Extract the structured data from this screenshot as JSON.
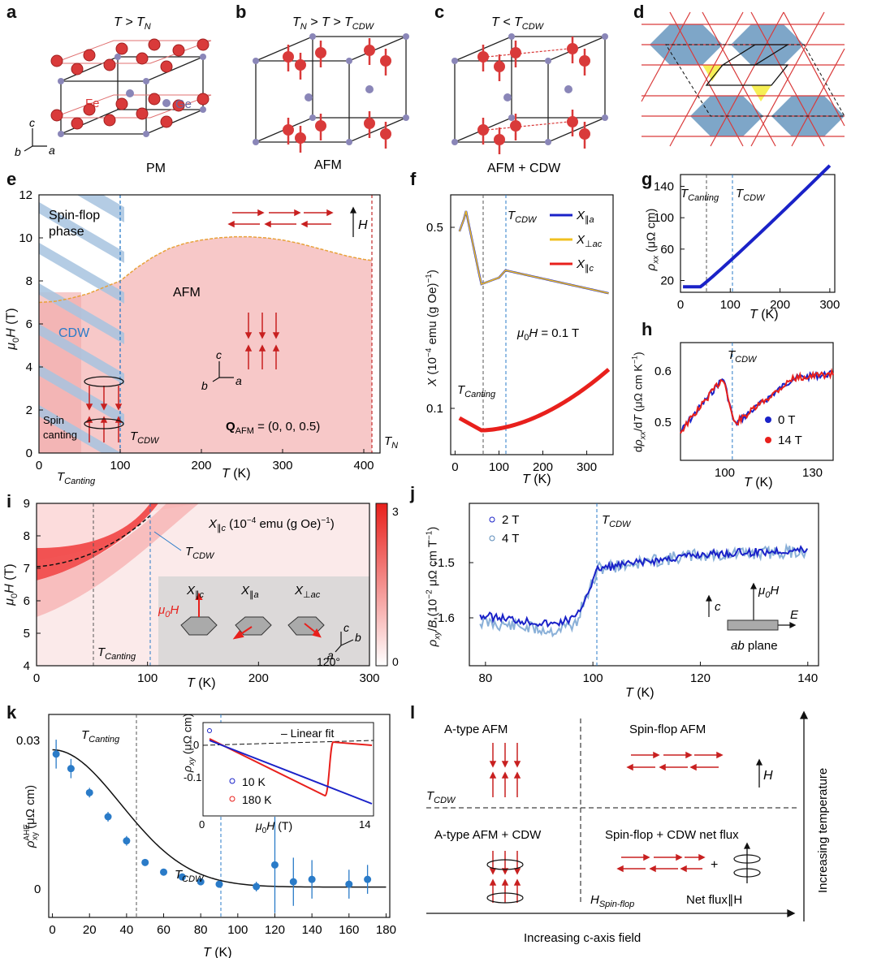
{
  "letters": [
    "a",
    "b",
    "c",
    "d",
    "e",
    "f",
    "g",
    "h",
    "i",
    "j",
    "k",
    "l"
  ],
  "a": {
    "title": "T > T_N",
    "fe": "Fe",
    "ge": "Ge",
    "state": "PM",
    "axes": [
      "c",
      "b",
      "a"
    ]
  },
  "b": {
    "title": "T_N > T > T_CDW",
    "state": "AFM"
  },
  "c": {
    "title": "T < T_CDW",
    "state": "AFM + CDW"
  },
  "e": {
    "xlabel": "T (K)",
    "ylabel": "μ0H (T)",
    "xticks": [
      0,
      100,
      200,
      300,
      400
    ],
    "yticks": [
      0,
      2,
      4,
      6,
      8,
      10,
      12
    ],
    "xlim": [
      0,
      420
    ],
    "ylim": [
      0,
      12
    ],
    "phase_boundary": {
      "x": [
        0,
        20,
        40,
        60,
        80,
        100,
        120,
        140,
        160,
        180,
        200,
        220,
        240,
        260,
        280,
        300,
        320,
        340,
        360,
        380,
        400,
        410
      ],
      "y": [
        7,
        7.05,
        7.2,
        7.4,
        7.7,
        8,
        8.6,
        9.1,
        9.5,
        9.75,
        9.9,
        10,
        10.05,
        10.05,
        10,
        9.9,
        9.75,
        9.55,
        9.35,
        9.15,
        9,
        8.95
      ]
    },
    "t_canting": 50,
    "t_cdw": 100,
    "t_n": 410,
    "labels": {
      "spinflop": "Spin-flop\nphase",
      "afm": "AFM",
      "cdw": "CDW",
      "spin_canting": "Spin\ncanting",
      "tcdw": "T_CDW",
      "qafm": "Q_AFM = (0, 0, 0.5)",
      "tn": "T_N",
      "tcanting": "T_Canting",
      "h": "H"
    }
  },
  "f": {
    "xlabel": "T (K)",
    "ylabel": "X (10⁻⁴ emu (g Oe)⁻¹)",
    "xticks": [
      0,
      100,
      200,
      300
    ],
    "yticks_labels": [
      "0.1",
      "0.5"
    ],
    "legend": [
      "X∥a",
      "X⊥ac",
      "X∥c"
    ],
    "field": "μ0H = 0.1 T",
    "tcdw": "T_CDW",
    "tcanting": "T_Canting",
    "colors": [
      "#1a22c8",
      "#f0c020",
      "#e8201c"
    ]
  },
  "g": {
    "xlabel": "T (K)",
    "ylabel": "ρxx (μΩ cm)",
    "xticks": [
      0,
      100,
      200,
      300
    ],
    "yticks": [
      20,
      60,
      100,
      140
    ],
    "tcanting": "T_Canting",
    "tcdw": "T_CDW"
  },
  "h": {
    "xlabel": "T (K)",
    "ylabel": "dρxx/dT (μΩ cm K⁻¹)",
    "xticks": [
      100,
      130
    ],
    "yticks": [
      "0.5",
      "0.6"
    ],
    "tcdw": "T_CDW",
    "legend": [
      "0 T",
      "14 T"
    ]
  },
  "i": {
    "xlabel": "T (K)",
    "ylabel": "μ0H (T)",
    "xticks": [
      0,
      100,
      200,
      300
    ],
    "yticks": [
      4,
      5,
      6,
      7,
      8,
      9
    ],
    "colorbar": {
      "min": "0",
      "max": "3"
    },
    "title": "X∥c (10⁻⁴ emu (g Oe)⁻¹)",
    "tcdw": "T_CDW",
    "tcanting": "T_Canting",
    "insets": [
      "X∥c",
      "X∥a",
      "X⊥ac"
    ],
    "mu0h": "μ0H",
    "axes": [
      "c",
      "b",
      "a"
    ],
    "angle": "120°"
  },
  "j": {
    "xlabel": "T (K)",
    "ylabel": "ρxy/B (10⁻² μΩ cm T⁻¹)",
    "xticks": [
      80,
      100,
      120,
      140
    ],
    "yticks": [
      "-1.5",
      "-1.6"
    ],
    "legend": [
      "2 T",
      "4 T"
    ],
    "tcdw": "T_CDW",
    "inset": {
      "c": "c",
      "mu0h": "μ0H",
      "e": "E",
      "plane": "ab plane"
    }
  },
  "k": {
    "xlabel": "T (K)",
    "ylabel": "ρxy AHE (μΩ cm)",
    "xticks": [
      0,
      20,
      40,
      60,
      80,
      100,
      120,
      140,
      160,
      180
    ],
    "yticks": [
      "0",
      "0.03"
    ],
    "tcanting": "T_Canting",
    "tcdw": "T_CDW",
    "data": {
      "x": [
        2,
        10,
        20,
        30,
        40,
        50,
        60,
        70,
        80,
        90,
        110,
        120,
        130,
        140,
        160,
        170
      ],
      "y": [
        0.028,
        0.025,
        0.02,
        0.015,
        0.01,
        0.0055,
        0.0035,
        0.0025,
        0.0015,
        0.001,
        0.0005,
        0.005,
        0.0015,
        0.002,
        0.001,
        0.002
      ]
    },
    "inset": {
      "xlabel": "μ0H (T)",
      "ylabel": "ρxy (μΩ cm)",
      "xticks": [
        "0",
        "14"
      ],
      "yticks": [
        "0",
        "-0.1"
      ],
      "fit": "– Linear fit",
      "legend": [
        "10 K",
        "180 K"
      ]
    }
  },
  "l": {
    "top_left": "A-type AFM",
    "top_right": "Spin-flop AFM",
    "bottom_left": "A-type AFM + CDW",
    "bottom_right": "Spin-flop + CDW net flux",
    "tcdw": "T_CDW",
    "hsf": "H_Spin-flop",
    "netflux": "Net flux∥H",
    "plus": "+",
    "h": "H",
    "xaxis": "Increasing c-axis field",
    "yaxis": "Increasing temperature"
  }
}
